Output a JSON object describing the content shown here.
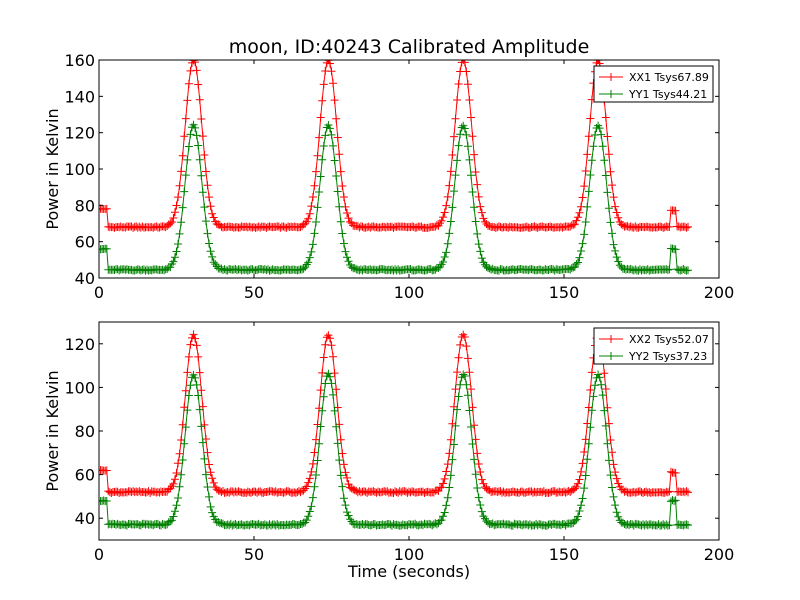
{
  "chart_data": [
    {
      "type": "line",
      "title": "moon, ID:40243 Calibrated Amplitude",
      "xlabel": "",
      "ylabel": "Power in Kelvin",
      "xlim": [
        0,
        200
      ],
      "ylim": [
        40,
        160
      ],
      "xticks": [
        "0",
        "50",
        "100",
        "150",
        "200"
      ],
      "yticks": [
        "40",
        "60",
        "80",
        "100",
        "120",
        "140",
        "160"
      ],
      "legend_position": "top-right",
      "series": [
        {
          "name": "XX1 Tsys67.89",
          "color": "#ff0000",
          "peak_times": [
            30.5,
            74,
            117.5,
            161
          ],
          "baseline": 68,
          "peak": 160,
          "start_value": 78,
          "end_bump_value": 77,
          "x_end": 190
        },
        {
          "name": "YY1 Tsys44.21",
          "color": "#008000",
          "peak_times": [
            30.5,
            74,
            117.5,
            161
          ],
          "baseline": 44.5,
          "peak": 124,
          "start_value": 56,
          "end_bump_value": 56,
          "x_end": 190
        }
      ]
    },
    {
      "type": "line",
      "title": "",
      "xlabel": "Time (seconds)",
      "ylabel": "Power in Kelvin",
      "xlim": [
        0,
        200
      ],
      "ylim": [
        30,
        130
      ],
      "xticks": [
        "0",
        "50",
        "100",
        "150",
        "200"
      ],
      "yticks": [
        "40",
        "60",
        "80",
        "100",
        "120"
      ],
      "legend_position": "top-right",
      "series": [
        {
          "name": "XX2 Tsys52.07",
          "color": "#ff0000",
          "peak_times": [
            30.5,
            74,
            117.5,
            161
          ],
          "baseline": 52,
          "peak": 124,
          "start_value": 62,
          "end_bump_value": 61,
          "x_end": 190
        },
        {
          "name": "YY2 Tsys37.23",
          "color": "#008000",
          "peak_times": [
            30.5,
            74,
            117.5,
            161
          ],
          "baseline": 37,
          "peak": 106,
          "start_value": 48,
          "end_bump_value": 48,
          "x_end": 190
        }
      ]
    }
  ]
}
